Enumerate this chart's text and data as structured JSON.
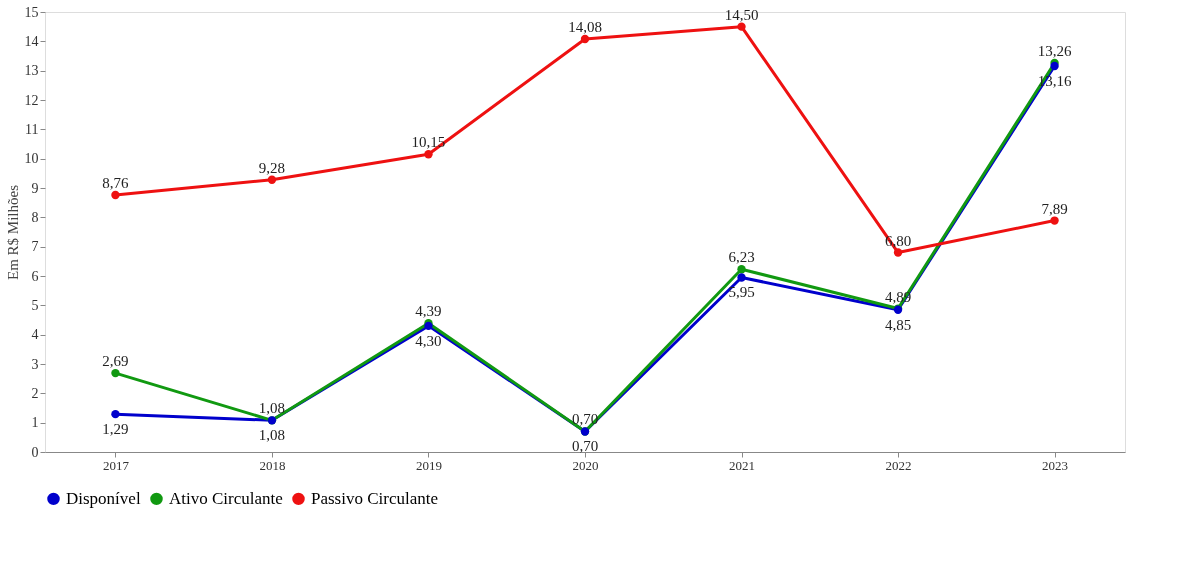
{
  "chart_data": {
    "type": "line",
    "ylabel": "Em R$ Milhões",
    "categories": [
      "2017",
      "2018",
      "2019",
      "2020",
      "2021",
      "2022",
      "2023"
    ],
    "series": [
      {
        "name": "Disponível",
        "color": "#0000cc",
        "values": [
          1.29,
          1.08,
          4.3,
          0.7,
          5.95,
          4.85,
          13.16
        ],
        "value_labels": [
          "1,29",
          "1,08",
          "4,30",
          "0,70",
          "5,95",
          "4,85",
          "13,16"
        ]
      },
      {
        "name": "Ativo Circulante",
        "color": "#119911",
        "values": [
          2.69,
          1.08,
          4.39,
          0.7,
          6.23,
          4.89,
          13.26
        ],
        "value_labels": [
          "2,69",
          "1,08",
          "4,39",
          "0,70",
          "6,23",
          "4,89",
          "13,26"
        ]
      },
      {
        "name": "Passivo Circulante",
        "color": "#ee1111",
        "values": [
          8.76,
          9.28,
          10.15,
          14.08,
          14.5,
          6.8,
          7.89
        ],
        "value_labels": [
          "8,76",
          "9,28",
          "10,15",
          "14,08",
          "14,50",
          "6,80",
          "7,89"
        ]
      }
    ],
    "ylim": [
      0,
      15
    ],
    "yticks": [
      0,
      1,
      2,
      3,
      4,
      5,
      6,
      7,
      8,
      9,
      10,
      11,
      12,
      13,
      14,
      15
    ],
    "grid": false,
    "legend": "bottom",
    "marker": "circle",
    "line_style": "solid"
  }
}
